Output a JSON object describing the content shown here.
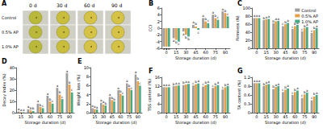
{
  "photo_panel": {
    "title": "A",
    "columns": [
      "0 d",
      "30 d",
      "60 d",
      "90 d"
    ],
    "rows": [
      "Control",
      "0.5% AP",
      "1.0% AP"
    ]
  },
  "chart_data": [
    {
      "type": "bar",
      "title": "B",
      "x_label": "Storage duration (d)",
      "y_label": "CCI",
      "categories": [
        "0",
        "15",
        "30",
        "45",
        "60",
        "75",
        "90"
      ],
      "ylim": [
        -6,
        6
      ],
      "yticks": [
        -6,
        -4,
        -2,
        0,
        2,
        4,
        6
      ],
      "grid": false,
      "series": [
        {
          "name": "Control",
          "color": "#9e9e9e",
          "values": [
            -5.5,
            -3,
            -1,
            1,
            3,
            4,
            5
          ],
          "letters": [
            "a",
            "a",
            "a",
            "a",
            "a",
            "a",
            "a"
          ]
        },
        {
          "name": "0.5% AP",
          "color": "#e6a04b",
          "values": [
            -5.5,
            -3.5,
            -2,
            0.5,
            2,
            3,
            4.5
          ],
          "letters": [
            "a",
            "b",
            "b",
            "b",
            "b",
            "b",
            "b"
          ]
        },
        {
          "name": "1.0% AP",
          "color": "#4aa882",
          "values": [
            -5.5,
            -4,
            -2.5,
            -0.5,
            1.5,
            2.5,
            3.5
          ],
          "letters": [
            "a",
            "c",
            "b",
            "c",
            "c",
            "c",
            "c"
          ]
        }
      ]
    },
    {
      "type": "bar",
      "title": "C",
      "x_label": "Storage duration (d)",
      "y_label": "Firmness (N)",
      "categories": [
        "0",
        "15",
        "30",
        "45",
        "60",
        "75",
        "90"
      ],
      "ylim": [
        0,
        100
      ],
      "yticks": [
        0,
        20,
        40,
        60,
        80,
        100
      ],
      "grid": false,
      "legend": "upper right",
      "series": [
        {
          "name": "Control",
          "color": "#9e9e9e",
          "values": [
            75,
            70,
            62,
            55,
            48,
            42,
            38
          ],
          "letters": [
            "a",
            "b",
            "b",
            "c",
            "c",
            "c",
            "c"
          ]
        },
        {
          "name": "0.5% AP",
          "color": "#e6a04b",
          "values": [
            75,
            72,
            67,
            60,
            55,
            50,
            45
          ],
          "letters": [
            "a",
            "a",
            "a",
            "b",
            "b",
            "b",
            "b"
          ]
        },
        {
          "name": "1.0% AP",
          "color": "#4aa882",
          "values": [
            75,
            73,
            68,
            63,
            58,
            53,
            50
          ],
          "letters": [
            "a",
            "a",
            "a",
            "a",
            "a",
            "a",
            "a"
          ]
        }
      ]
    },
    {
      "type": "bar",
      "title": "D",
      "x_label": "Storage duration (d)",
      "y_label": "Decay index (%)",
      "categories": [
        "15",
        "30",
        "45",
        "60",
        "75",
        "90"
      ],
      "ylim": [
        0,
        40
      ],
      "yticks": [
        0,
        10,
        20,
        30,
        40
      ],
      "grid": false,
      "series": [
        {
          "name": "Control",
          "color": "#9e9e9e",
          "values": [
            1,
            3,
            8,
            15,
            22,
            35
          ],
          "letters": [
            "a",
            "a",
            "a",
            "a",
            "a",
            "a"
          ]
        },
        {
          "name": "0.5% AP",
          "color": "#e6a04b",
          "values": [
            0.5,
            2,
            5,
            10,
            16,
            25
          ],
          "letters": [
            "a",
            "b",
            "b",
            "b",
            "b",
            "b"
          ]
        },
        {
          "name": "1.0% AP",
          "color": "#4aa882",
          "values": [
            0.3,
            1.5,
            4,
            8,
            12,
            18
          ],
          "letters": [
            "a",
            "b",
            "c",
            "c",
            "c",
            "c"
          ]
        }
      ]
    },
    {
      "type": "bar",
      "title": "E",
      "x_label": "Storage duration (d)",
      "y_label": "Weight loss (%)",
      "categories": [
        "15",
        "30",
        "45",
        "60",
        "75",
        "90"
      ],
      "ylim": [
        0,
        10
      ],
      "yticks": [
        0,
        2,
        4,
        6,
        8,
        10
      ],
      "grid": false,
      "series": [
        {
          "name": "Control",
          "color": "#9e9e9e",
          "values": [
            1,
            2.2,
            3.5,
            5,
            6.5,
            8.5
          ],
          "letters": [
            "a",
            "a",
            "a",
            "a",
            "a",
            "a"
          ]
        },
        {
          "name": "0.5% AP",
          "color": "#e6a04b",
          "values": [
            0.8,
            1.8,
            2.8,
            4.2,
            5.5,
            7
          ],
          "letters": [
            "a",
            "a",
            "b",
            "b",
            "b",
            "b"
          ]
        },
        {
          "name": "1.0% AP",
          "color": "#4aa882",
          "values": [
            0.7,
            1.6,
            2.5,
            3.8,
            5,
            6
          ],
          "letters": [
            "a",
            "b",
            "b",
            "c",
            "c",
            "c"
          ]
        }
      ]
    },
    {
      "type": "bar",
      "title": "F",
      "x_label": "Storage duration (d)",
      "y_label": "TSS content (%)",
      "categories": [
        "0",
        "15",
        "30",
        "45",
        "60",
        "75",
        "90"
      ],
      "ylim": [
        0,
        16
      ],
      "yticks": [
        0,
        4,
        8,
        12,
        16
      ],
      "grid": false,
      "series": [
        {
          "name": "Control",
          "color": "#9e9e9e",
          "values": [
            11.5,
            12,
            12.5,
            12.3,
            11.8,
            11.2,
            10.5
          ],
          "letters": [
            "a",
            "b",
            "b",
            "c",
            "c",
            "c",
            "c"
          ]
        },
        {
          "name": "0.5% AP",
          "color": "#e6a04b",
          "values": [
            11.5,
            12.2,
            12.8,
            12.9,
            12.5,
            12,
            11.5
          ],
          "letters": [
            "a",
            "a",
            "a",
            "b",
            "b",
            "b",
            "b"
          ]
        },
        {
          "name": "1.0% AP",
          "color": "#4aa882",
          "values": [
            11.5,
            12.3,
            13,
            13.2,
            12.9,
            12.5,
            12
          ],
          "letters": [
            "a",
            "a",
            "a",
            "a",
            "a",
            "a",
            "a"
          ]
        }
      ]
    },
    {
      "type": "bar",
      "title": "G",
      "x_label": "Storage duration (d)",
      "y_label": "TA content (%)",
      "categories": [
        "0",
        "15",
        "30",
        "45",
        "60",
        "75",
        "90"
      ],
      "ylim": [
        0,
        1.2
      ],
      "yticks": [
        0,
        0.3,
        0.6,
        0.9,
        1.2
      ],
      "grid": false,
      "series": [
        {
          "name": "Control",
          "color": "#9e9e9e",
          "values": [
            1,
            0.9,
            0.8,
            0.7,
            0.6,
            0.5,
            0.42
          ],
          "letters": [
            "a",
            "b",
            "b",
            "c",
            "c",
            "c",
            "c"
          ]
        },
        {
          "name": "0.5% AP",
          "color": "#e6a04b",
          "values": [
            1,
            0.95,
            0.87,
            0.78,
            0.7,
            0.62,
            0.55
          ],
          "letters": [
            "a",
            "a",
            "a",
            "b",
            "b",
            "b",
            "b"
          ]
        },
        {
          "name": "1.0% AP",
          "color": "#4aa882",
          "values": [
            1,
            0.97,
            0.9,
            0.82,
            0.75,
            0.68,
            0.6
          ],
          "letters": [
            "a",
            "a",
            "a",
            "a",
            "a",
            "a",
            "a"
          ]
        }
      ]
    }
  ]
}
